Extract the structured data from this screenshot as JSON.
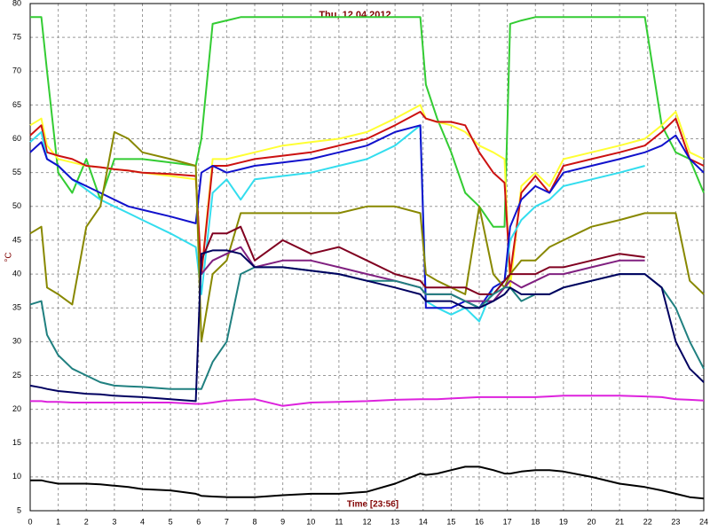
{
  "chart_data": {
    "type": "line",
    "title": "Thu, 12.04.2012",
    "x_label": "Time [23:56]",
    "y_label": "°C",
    "x": [
      0,
      0.4,
      0.6,
      1,
      1.5,
      2,
      2.5,
      3,
      3.5,
      4,
      5,
      5.9,
      6.1,
      6.5,
      7,
      7.5,
      8,
      9,
      10,
      11,
      12,
      13,
      13.9,
      14.1,
      14.5,
      15,
      15.5,
      16,
      16.5,
      16.9,
      17.1,
      17.5,
      18,
      18.5,
      19,
      20,
      21,
      21.9,
      22.5,
      23,
      23.5,
      24
    ],
    "xlim": [
      0,
      24
    ],
    "xticks": [
      0,
      1,
      2,
      3,
      4,
      5,
      6,
      7,
      8,
      9,
      10,
      11,
      12,
      13,
      14,
      15,
      16,
      17,
      18,
      19,
      20,
      21,
      22,
      23,
      24
    ],
    "ylim": [
      5,
      80
    ],
    "yticks": [
      5,
      10,
      15,
      20,
      25,
      30,
      35,
      40,
      45,
      50,
      55,
      60,
      65,
      70,
      75,
      80
    ],
    "grid": true,
    "series": [
      {
        "color": "#33cc33",
        "values": [
          78,
          78,
          70,
          55,
          52,
          57,
          51,
          57,
          57,
          57,
          56.5,
          56,
          60,
          77,
          77.5,
          78,
          78,
          78,
          78,
          78,
          78,
          78,
          78,
          68,
          63,
          58,
          52,
          50,
          47,
          47,
          77,
          77.5,
          78,
          78,
          78,
          78,
          78,
          78,
          62,
          58,
          57,
          52
        ]
      },
      {
        "color": "#ffff33",
        "values": [
          62,
          63,
          59,
          57,
          56.5,
          56,
          55.8,
          55.5,
          55.3,
          55,
          54.5,
          54,
          40,
          57,
          57,
          57.5,
          58,
          59,
          59.5,
          60,
          61,
          63,
          65,
          63,
          62.5,
          62,
          61,
          59,
          58,
          57,
          38,
          53,
          55,
          53,
          57,
          58,
          59,
          60,
          62,
          64,
          58,
          57
        ]
      },
      {
        "color": "#cc1111",
        "values": [
          60.5,
          62,
          58,
          57.5,
          57,
          56,
          55.8,
          55.5,
          55.3,
          55,
          54.8,
          54.5,
          40,
          56,
          56,
          56.5,
          57,
          57.5,
          58,
          59,
          60,
          62,
          64,
          63,
          62.5,
          62.5,
          62,
          58,
          55,
          53.5,
          40,
          52,
          54.5,
          52,
          56,
          57,
          58,
          59,
          61,
          63,
          57,
          56
        ]
      },
      {
        "color": "#33ddee",
        "values": [
          59.5,
          61,
          57,
          56,
          54,
          52.5,
          51,
          50,
          49,
          48,
          46,
          44,
          37,
          52,
          54,
          51,
          54,
          54.5,
          55,
          56,
          57,
          59,
          62,
          36,
          35,
          34,
          35,
          33,
          38,
          39,
          45,
          48,
          50,
          51,
          53,
          54,
          55,
          56,
          null,
          null,
          null,
          null
        ]
      },
      {
        "color": "#1111cc",
        "values": [
          58,
          59.5,
          57,
          56,
          54,
          53,
          52,
          51,
          50,
          49.5,
          48.5,
          47.5,
          55,
          56,
          55,
          55.5,
          56,
          56.5,
          57,
          58,
          59,
          61,
          62,
          35,
          35,
          35,
          36,
          35,
          38,
          39,
          47,
          51,
          53,
          52,
          55,
          56,
          57,
          58,
          59,
          60.5,
          57,
          55
        ]
      },
      {
        "color": "#888800",
        "values": [
          46,
          47,
          38,
          37,
          35.5,
          47,
          50,
          61,
          60,
          58,
          57,
          56,
          30,
          40,
          42,
          49,
          49,
          49,
          49,
          49,
          50,
          50,
          49,
          40,
          39,
          38,
          37,
          50,
          40,
          38,
          40,
          42,
          42,
          44,
          45,
          47,
          48,
          49,
          49,
          49,
          39,
          37
        ]
      },
      {
        "color": "#800020",
        "values": [
          null,
          null,
          null,
          null,
          null,
          null,
          null,
          null,
          null,
          null,
          null,
          null,
          42,
          46,
          46,
          47,
          42,
          45,
          43,
          44,
          42,
          40,
          39,
          38,
          38,
          38,
          38,
          37,
          37,
          39,
          40,
          40,
          40,
          41,
          41,
          42,
          43,
          42.5,
          null,
          null,
          null,
          null
        ]
      },
      {
        "color": "#802080",
        "values": [
          null,
          null,
          null,
          null,
          null,
          null,
          null,
          null,
          null,
          null,
          null,
          null,
          40,
          42,
          43,
          44,
          41,
          42,
          42,
          41,
          40,
          39,
          38,
          37,
          37,
          37,
          36,
          36,
          36,
          38,
          39,
          38,
          39,
          40,
          40,
          41,
          42,
          42,
          null,
          null,
          null,
          null
        ]
      },
      {
        "color": "#208080",
        "values": [
          35.5,
          36,
          31,
          28,
          26,
          25,
          24,
          23.5,
          23.4,
          23.3,
          23,
          23,
          23,
          27,
          30,
          40,
          41,
          41,
          40.5,
          40,
          39,
          39,
          38,
          37,
          37,
          37,
          36,
          35,
          37,
          38,
          38,
          36,
          37,
          37,
          38,
          39,
          40,
          40,
          38,
          35,
          30,
          26
        ]
      },
      {
        "color": "#000060",
        "values": [
          23.5,
          23.2,
          23,
          22.7,
          22.5,
          22.3,
          22.2,
          22,
          21.9,
          21.8,
          21.5,
          21.2,
          43,
          43.5,
          43.5,
          43,
          41,
          41,
          40.5,
          40,
          39,
          38,
          37,
          36,
          36,
          36,
          35,
          35,
          36,
          37,
          38,
          37,
          37,
          37,
          38,
          39,
          40,
          40,
          38,
          30,
          26,
          24
        ]
      },
      {
        "color": "#dd22dd",
        "values": [
          21.2,
          21.2,
          21.1,
          21.1,
          21,
          21,
          21,
          21,
          21,
          21,
          21,
          20.8,
          20.8,
          21,
          21.3,
          21.4,
          21.5,
          20.5,
          21,
          21.1,
          21.2,
          21.4,
          21.5,
          21.5,
          21.5,
          21.6,
          21.7,
          21.8,
          21.8,
          21.8,
          21.8,
          21.8,
          21.8,
          21.9,
          22,
          22,
          22,
          21.9,
          21.8,
          21.5,
          21.4,
          21.3
        ]
      },
      {
        "color": "#000000",
        "values": [
          9.5,
          9.5,
          9.3,
          9,
          9,
          9,
          8.9,
          8.7,
          8.5,
          8.2,
          8,
          7.5,
          7.2,
          7.1,
          7,
          7,
          7,
          7.3,
          7.5,
          7.5,
          7.8,
          9,
          10.5,
          10.3,
          10.5,
          11,
          11.5,
          11.5,
          11,
          10.5,
          10.5,
          10.8,
          11,
          11,
          10.8,
          10,
          9,
          8.5,
          8,
          7.5,
          7,
          6.8
        ]
      }
    ]
  }
}
